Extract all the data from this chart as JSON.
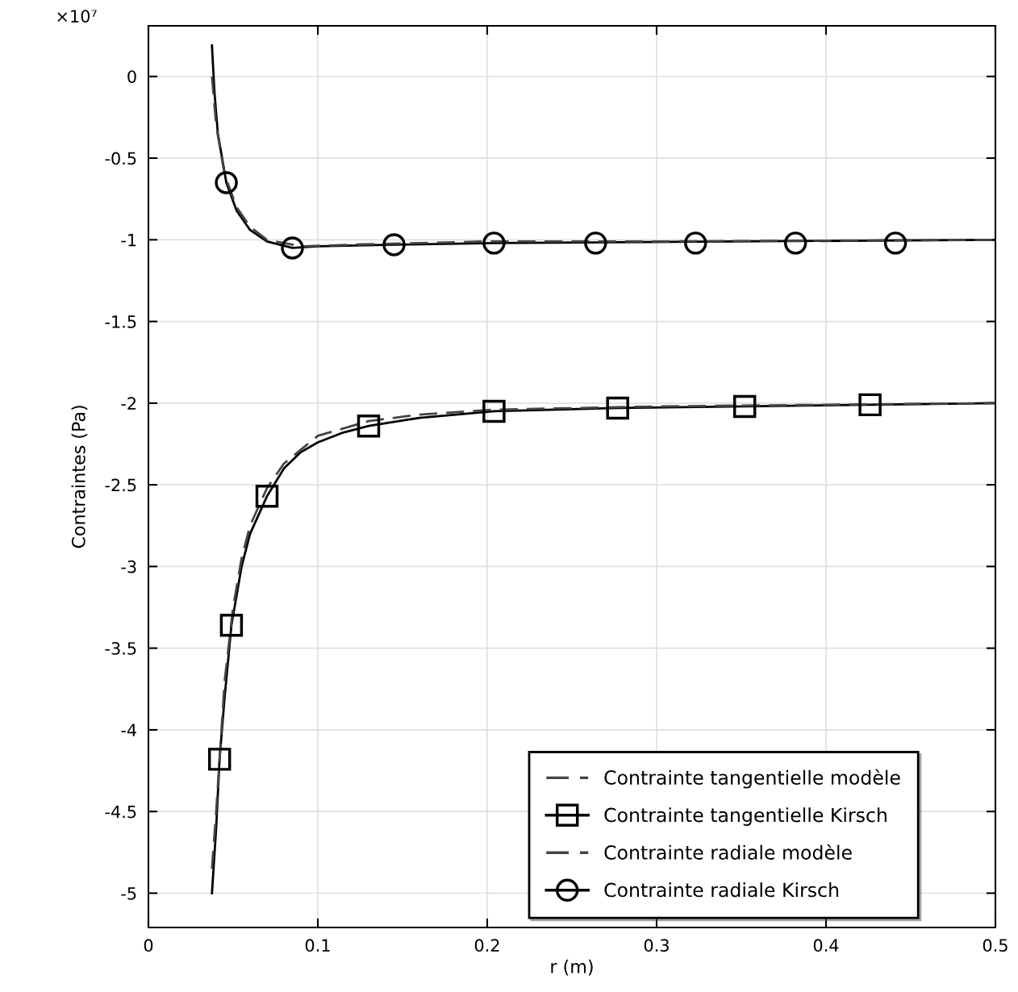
{
  "chart_data": {
    "type": "line",
    "xlabel": "r (m)",
    "ylabel": "Contraintes (Pa)",
    "annotations": [
      "×10⁷"
    ],
    "xlim": [
      0,
      0.5
    ],
    "xticks": [
      0,
      0.1,
      0.2,
      0.3,
      0.4,
      0.5
    ],
    "ylim": [
      -5.21,
      0.31
    ],
    "yticks": [
      0,
      {
        "value": -0.5,
        "label": "-0.5"
      },
      {
        "value": -1,
        "label": "-1"
      },
      {
        "value": -1.5,
        "label": "-1.5"
      },
      {
        "value": -2,
        "label": "-2"
      },
      {
        "value": -2.5,
        "label": "-2.5"
      },
      {
        "value": -3,
        "label": "-3"
      },
      {
        "value": -3.5,
        "label": "-3.5"
      },
      {
        "value": -4,
        "label": "-4"
      },
      {
        "value": -4.5,
        "label": "-4.5"
      },
      {
        "value": -5,
        "label": "-5"
      }
    ],
    "grid": true,
    "legend": "bottom right",
    "series": [
      {
        "color": "#000000",
        "line_style": "solid",
        "x": [
          0.0375,
          0.04,
          0.042,
          0.045,
          0.049,
          0.055,
          0.06,
          0.07,
          0.08,
          0.09,
          0.1,
          0.115,
          0.13,
          0.16,
          0.204,
          0.277,
          0.352,
          0.426,
          0.5
        ],
        "values": [
          -5.0,
          -4.6,
          -4.18,
          -3.8,
          -3.36,
          -3.0,
          -2.8,
          -2.57,
          -2.4,
          -2.3,
          -2.24,
          -2.18,
          -2.14,
          -2.09,
          -2.05,
          -2.03,
          -2.02,
          -2.01,
          -2.0
        ]
      },
      {
        "name": "Contrainte tangentielle modèle",
        "color": "#444444",
        "line_style": "dashed",
        "x": [
          0.0375,
          0.04,
          0.045,
          0.05,
          0.055,
          0.06,
          0.07,
          0.08,
          0.1,
          0.13,
          0.16,
          0.204,
          0.3,
          0.4,
          0.5
        ],
        "values": [
          -4.85,
          -4.5,
          -3.7,
          -3.25,
          -2.95,
          -2.75,
          -2.52,
          -2.37,
          -2.2,
          -2.11,
          -2.07,
          -2.04,
          -2.02,
          -2.01,
          -2.0
        ]
      },
      {
        "type": "scatter",
        "name": "Contrainte tangentielle Kirsch",
        "color": "#000000",
        "marker": "square",
        "line_style": "solid",
        "x": [
          0.042,
          0.049,
          0.07,
          0.13,
          0.204,
          0.277,
          0.352,
          0.426
        ],
        "values": [
          -4.18,
          -3.36,
          -2.57,
          -2.14,
          -2.05,
          -2.03,
          -2.02,
          -2.01
        ]
      },
      {
        "color": "#000000",
        "line_style": "solid",
        "x": [
          0.0375,
          0.039,
          0.041,
          0.046,
          0.052,
          0.06,
          0.07,
          0.085,
          0.1,
          0.145,
          0.204,
          0.5
        ],
        "values": [
          0.19,
          -0.1,
          -0.35,
          -0.65,
          -0.82,
          -0.94,
          -1.01,
          -1.05,
          -1.04,
          -1.03,
          -1.02,
          -1.0
        ]
      },
      {
        "name": "Contrainte radiale modèle",
        "color": "#444444",
        "line_style": "dashed",
        "x": [
          0.0375,
          0.04,
          0.045,
          0.052,
          0.06,
          0.07,
          0.09,
          0.12,
          0.2,
          0.3,
          0.5
        ],
        "values": [
          0.0,
          -0.3,
          -0.6,
          -0.8,
          -0.92,
          -1.0,
          -1.04,
          -1.03,
          -1.01,
          -1.01,
          -1.0
        ]
      },
      {
        "type": "scatter",
        "name": "Contrainte radiale Kirsch",
        "color": "#000000",
        "marker": "circle",
        "line_style": "solid",
        "x": [
          0.046,
          0.085,
          0.145,
          0.204,
          0.264,
          0.323,
          0.382,
          0.441
        ],
        "values": [
          -0.65,
          -1.05,
          -1.03,
          -1.02,
          -1.02,
          -1.02,
          -1.02,
          -1.02
        ]
      }
    ]
  }
}
